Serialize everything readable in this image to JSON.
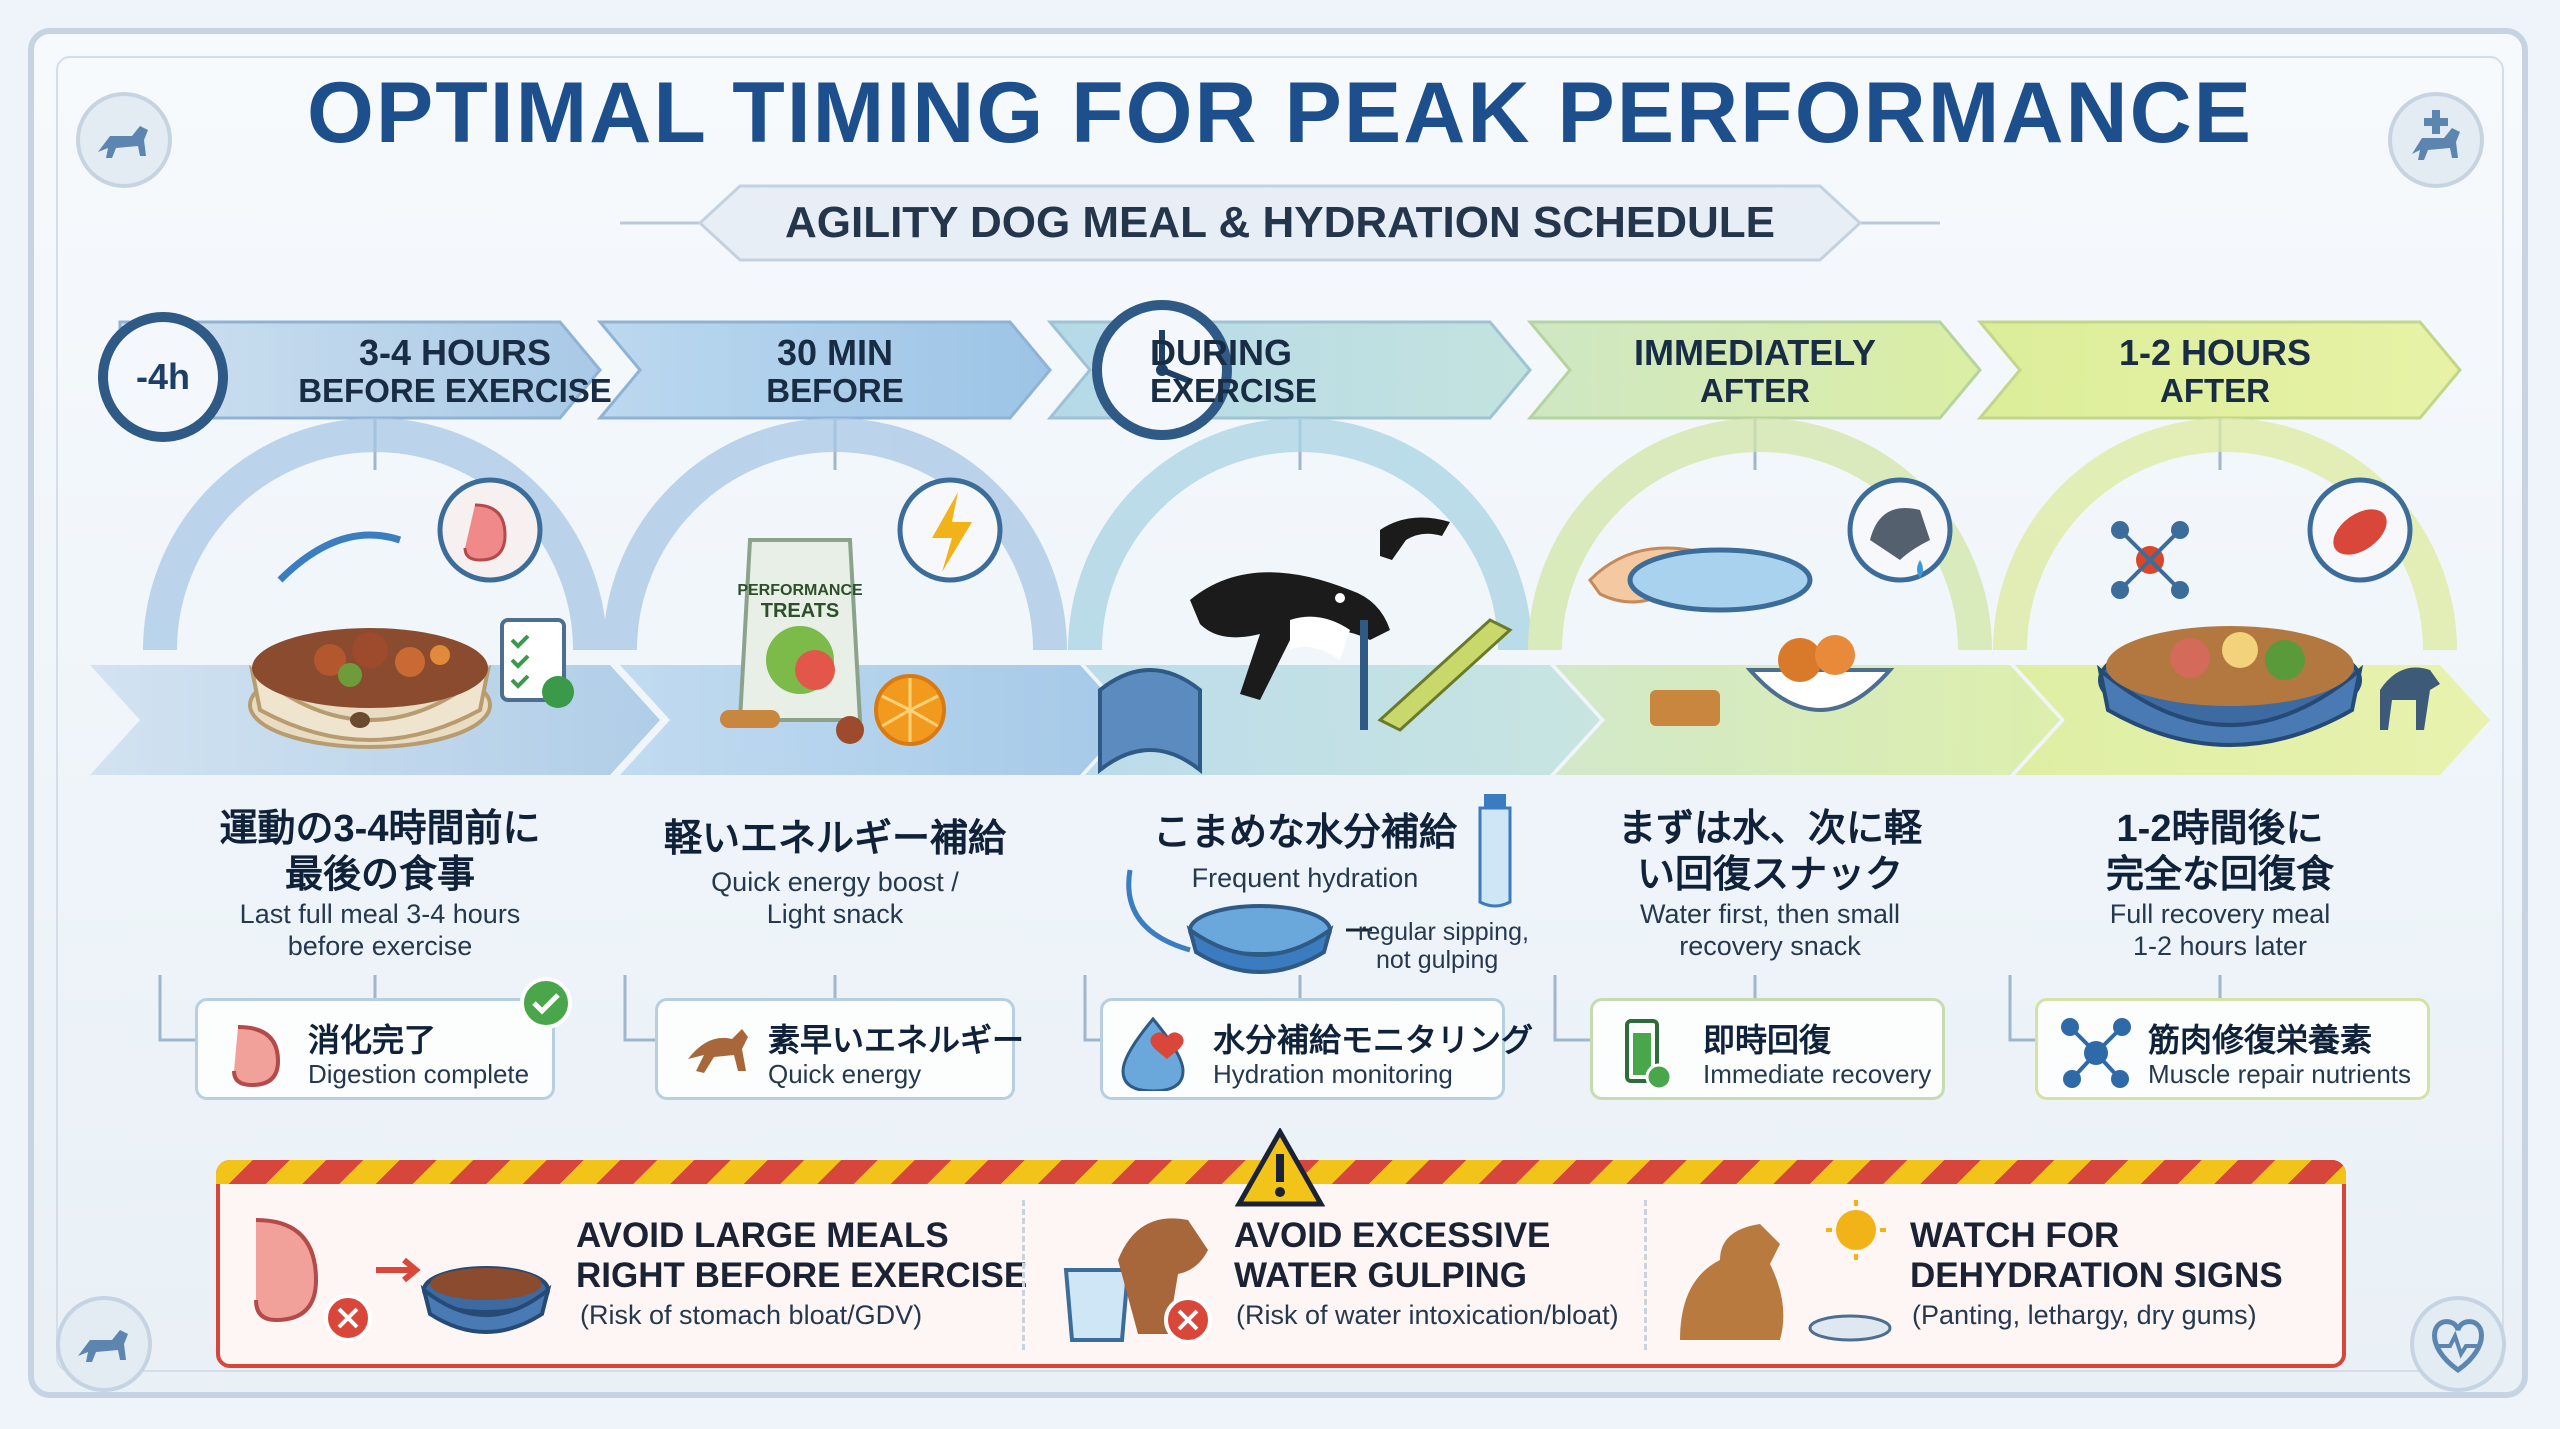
{
  "title": "OPTIMAL TIMING FOR PEAK PERFORMANCE",
  "subtitle": "AGILITY DOG MEAL & HYDRATION SCHEDULE",
  "clock_badge": "-4h",
  "colors": {
    "title": "#1d4f8c",
    "stage_blue": "#9fc3e3",
    "stage_teal": "#a9d4de",
    "stage_green": "#cde6a2",
    "stage_lime": "#dcec9a",
    "warning": "#d7463a",
    "warning_yellow": "#f2c318"
  },
  "stages": [
    {
      "label_line1": "3-4 HOURS",
      "label_line2": "BEFORE EXERCISE",
      "ja_line1": "運動の3-4時間前に",
      "ja_line2": "最後の食事",
      "en_line1": "Last full meal 3-4 hours",
      "en_line2": "before exercise",
      "badge_ja": "消化完了",
      "badge_en": "Digestion complete",
      "product_label": ""
    },
    {
      "label_line1": "30 MIN",
      "label_line2": "BEFORE",
      "ja_line1": "軽いエネルギー補給",
      "ja_line2": "",
      "en_line1": "Quick energy boost /",
      "en_line2": "Light snack",
      "badge_ja": "素早いエネルギー",
      "badge_en": "Quick energy",
      "product_label_1": "PERFORMANCE",
      "product_label_2": "TREATS"
    },
    {
      "label_line1": "DURING",
      "label_line2": "EXERCISE",
      "ja_line1": "こまめな水分補給",
      "ja_line2": "",
      "en_line1": "Frequent hydration",
      "en_line2": "",
      "note_line1": "regular sipping,",
      "note_line2": "not gulping",
      "badge_ja": "水分補給モニタリング",
      "badge_en": "Hydration monitoring"
    },
    {
      "label_line1": "IMMEDIATELY",
      "label_line2": "AFTER",
      "ja_line1": "まずは水、次に軽",
      "ja_line2": "い回復スナック",
      "en_line1": "Water first, then small",
      "en_line2": "recovery snack",
      "badge_ja": "即時回復",
      "badge_en": "Immediate recovery"
    },
    {
      "label_line1": "1-2 HOURS",
      "label_line2": "AFTER",
      "ja_line1": "1-2時間後に",
      "ja_line2": "完全な回復食",
      "en_line1": "Full recovery meal",
      "en_line2": "1-2 hours later",
      "badge_ja": "筋肉修復栄養素",
      "badge_en": "Muscle repair nutrients"
    }
  ],
  "warnings": [
    {
      "title_line1": "AVOID LARGE MEALS",
      "title_line2": "RIGHT BEFORE EXERCISE",
      "note": "(Risk of stomach bloat/GDV)",
      "icon": "stomach-bowl-icon"
    },
    {
      "title_line1": "AVOID EXCESSIVE",
      "title_line2": "WATER GULPING",
      "note": "(Risk of water intoxication/bloat)",
      "icon": "dog-bucket-icon"
    },
    {
      "title_line1": "WATCH FOR",
      "title_line2": "DEHYDRATION SIGNS",
      "note": "(Panting, lethargy, dry gums)",
      "icon": "panting-dog-sun-icon"
    }
  ]
}
